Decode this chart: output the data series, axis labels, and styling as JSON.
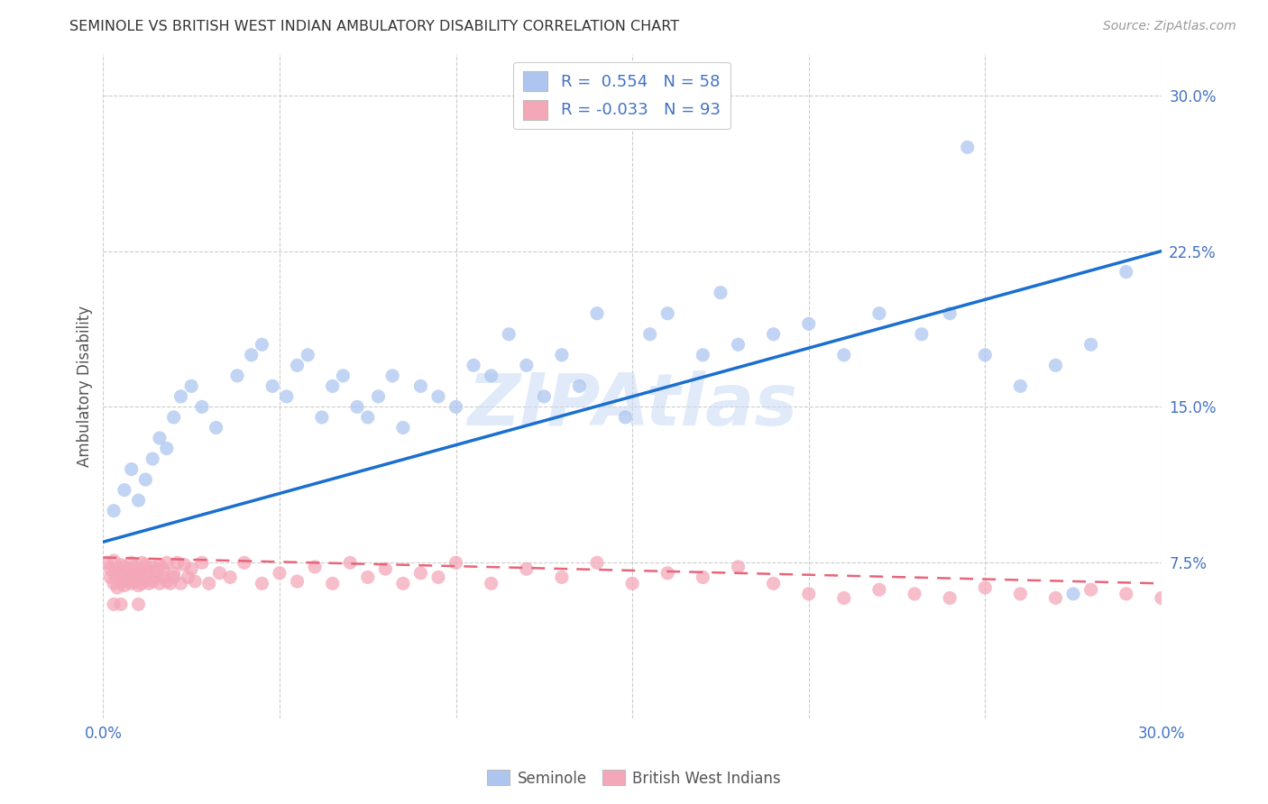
{
  "title": "SEMINOLE VS BRITISH WEST INDIAN AMBULATORY DISABILITY CORRELATION CHART",
  "source": "Source: ZipAtlas.com",
  "ylabel": "Ambulatory Disability",
  "watermark": "ZIPAtlas",
  "xlim": [
    0.0,
    0.3
  ],
  "ylim": [
    0.0,
    0.32
  ],
  "seminole_R": 0.554,
  "seminole_N": 58,
  "bwi_R": -0.033,
  "bwi_N": 93,
  "seminole_color": "#aec6ef",
  "bwi_color": "#f4a7b9",
  "seminole_line_color": "#1a6fcf",
  "bwi_line_color": "#e8657a",
  "background_color": "#ffffff",
  "grid_color": "#cccccc",
  "title_color": "#333333",
  "axis_label_color": "#555555",
  "tick_color": "#4472c4",
  "legend_text_color": "#4472c4",
  "seminole_x": [
    0.003,
    0.006,
    0.008,
    0.01,
    0.012,
    0.014,
    0.016,
    0.018,
    0.02,
    0.022,
    0.025,
    0.028,
    0.032,
    0.038,
    0.042,
    0.045,
    0.048,
    0.052,
    0.055,
    0.058,
    0.062,
    0.065,
    0.068,
    0.072,
    0.075,
    0.078,
    0.082,
    0.085,
    0.09,
    0.095,
    0.1,
    0.105,
    0.11,
    0.115,
    0.12,
    0.125,
    0.13,
    0.135,
    0.14,
    0.148,
    0.155,
    0.16,
    0.17,
    0.175,
    0.18,
    0.19,
    0.2,
    0.21,
    0.22,
    0.232,
    0.24,
    0.25,
    0.26,
    0.27,
    0.275,
    0.28,
    0.29,
    0.245
  ],
  "seminole_y": [
    0.1,
    0.11,
    0.12,
    0.105,
    0.115,
    0.125,
    0.135,
    0.13,
    0.145,
    0.155,
    0.16,
    0.15,
    0.14,
    0.165,
    0.175,
    0.18,
    0.16,
    0.155,
    0.17,
    0.175,
    0.145,
    0.16,
    0.165,
    0.15,
    0.145,
    0.155,
    0.165,
    0.14,
    0.16,
    0.155,
    0.15,
    0.17,
    0.165,
    0.185,
    0.17,
    0.155,
    0.175,
    0.16,
    0.195,
    0.145,
    0.185,
    0.195,
    0.175,
    0.205,
    0.18,
    0.185,
    0.19,
    0.175,
    0.195,
    0.185,
    0.195,
    0.175,
    0.16,
    0.17,
    0.06,
    0.18,
    0.215,
    0.275
  ],
  "bwi_x": [
    0.001,
    0.002,
    0.002,
    0.003,
    0.003,
    0.003,
    0.004,
    0.004,
    0.004,
    0.005,
    0.005,
    0.005,
    0.006,
    0.006,
    0.006,
    0.007,
    0.007,
    0.007,
    0.008,
    0.008,
    0.008,
    0.009,
    0.009,
    0.009,
    0.01,
    0.01,
    0.01,
    0.011,
    0.011,
    0.012,
    0.012,
    0.012,
    0.013,
    0.013,
    0.014,
    0.014,
    0.015,
    0.015,
    0.016,
    0.016,
    0.017,
    0.017,
    0.018,
    0.018,
    0.019,
    0.02,
    0.02,
    0.021,
    0.022,
    0.023,
    0.024,
    0.025,
    0.026,
    0.028,
    0.03,
    0.033,
    0.036,
    0.04,
    0.045,
    0.05,
    0.055,
    0.06,
    0.065,
    0.07,
    0.075,
    0.08,
    0.085,
    0.09,
    0.095,
    0.1,
    0.11,
    0.12,
    0.13,
    0.14,
    0.15,
    0.16,
    0.17,
    0.18,
    0.19,
    0.2,
    0.21,
    0.22,
    0.23,
    0.24,
    0.25,
    0.26,
    0.27,
    0.28,
    0.29,
    0.3,
    0.003,
    0.005,
    0.01
  ],
  "bwi_y": [
    0.075,
    0.072,
    0.068,
    0.076,
    0.065,
    0.07,
    0.063,
    0.072,
    0.068,
    0.074,
    0.065,
    0.07,
    0.067,
    0.073,
    0.064,
    0.068,
    0.066,
    0.072,
    0.065,
    0.075,
    0.068,
    0.07,
    0.066,
    0.073,
    0.064,
    0.071,
    0.068,
    0.075,
    0.065,
    0.072,
    0.067,
    0.074,
    0.065,
    0.07,
    0.066,
    0.073,
    0.068,
    0.071,
    0.065,
    0.074,
    0.068,
    0.072,
    0.066,
    0.075,
    0.065,
    0.07,
    0.068,
    0.075,
    0.065,
    0.074,
    0.068,
    0.072,
    0.066,
    0.075,
    0.065,
    0.07,
    0.068,
    0.075,
    0.065,
    0.07,
    0.066,
    0.073,
    0.065,
    0.075,
    0.068,
    0.072,
    0.065,
    0.07,
    0.068,
    0.075,
    0.065,
    0.072,
    0.068,
    0.075,
    0.065,
    0.07,
    0.068,
    0.073,
    0.065,
    0.06,
    0.058,
    0.062,
    0.06,
    0.058,
    0.063,
    0.06,
    0.058,
    0.062,
    0.06,
    0.058,
    0.055,
    0.055,
    0.055
  ],
  "seminole_line_x": [
    0.0,
    0.3
  ],
  "seminole_line_y": [
    0.085,
    0.225
  ],
  "bwi_line_x": [
    0.0,
    0.3
  ],
  "bwi_line_y": [
    0.0775,
    0.065
  ],
  "ytick_vals": [
    0.075,
    0.15,
    0.225,
    0.3
  ],
  "ytick_labels": [
    "7.5%",
    "15.0%",
    "22.5%",
    "30.0%"
  ],
  "xtick_vals": [
    0.0,
    0.05,
    0.1,
    0.15,
    0.2,
    0.25,
    0.3
  ],
  "xtick_labels": [
    "0.0%",
    "",
    "",
    "",
    "",
    "",
    "30.0%"
  ]
}
